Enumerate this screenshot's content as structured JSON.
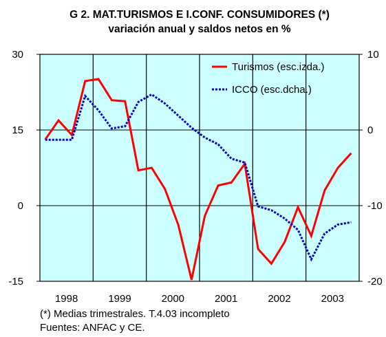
{
  "chart_data": {
    "type": "line",
    "title": "G 2. MAT.TURISMOS E I.CONF. CONSUMIDORES (*)",
    "subtitle": "variación anual  y saldos netos en %",
    "categories": [
      "1998",
      null,
      null,
      null,
      "1999",
      null,
      null,
      null,
      "2000",
      null,
      null,
      null,
      "2001",
      null,
      null,
      null,
      "2002",
      null,
      null,
      null,
      "2003",
      null,
      null,
      null
    ],
    "series": [
      {
        "name": "Turismos (esc.izda.)",
        "color": "#ff0000",
        "values": [
          13.1,
          16.9,
          14.0,
          24.7,
          25.1,
          20.9,
          20.7,
          7.0,
          7.5,
          3.3,
          -3.8,
          -14.7,
          -2.0,
          4.0,
          4.6,
          8.3,
          -8.6,
          -11.5,
          -7.2,
          -0.3,
          -6.0,
          3.0,
          7.5,
          10.4
        ]
      },
      {
        "name": "ICCO (esc.dcha.)",
        "color": "#0000cc",
        "axis": "y2",
        "values": [
          -1.3,
          -1.3,
          -1.3,
          4.5,
          2.6,
          0.2,
          0.5,
          3.7,
          4.7,
          3.5,
          1.9,
          0.3,
          -1.0,
          -1.9,
          -3.8,
          -4.3,
          -10.1,
          -10.6,
          -11.7,
          -13.2,
          -17.1,
          -13.7,
          -12.5,
          -12.2
        ]
      }
    ],
    "ylim": [
      -15,
      30
    ],
    "yticks": [
      -15,
      0,
      15,
      30
    ],
    "y2lim": [
      -20,
      10
    ],
    "y2ticks": [
      -20,
      -10,
      0,
      10
    ],
    "legend": "upper right",
    "notes": [
      "(*) Medias trimestrales. T.4.03 incompleto",
      "Fuentes: ANFAC y CE."
    ]
  }
}
